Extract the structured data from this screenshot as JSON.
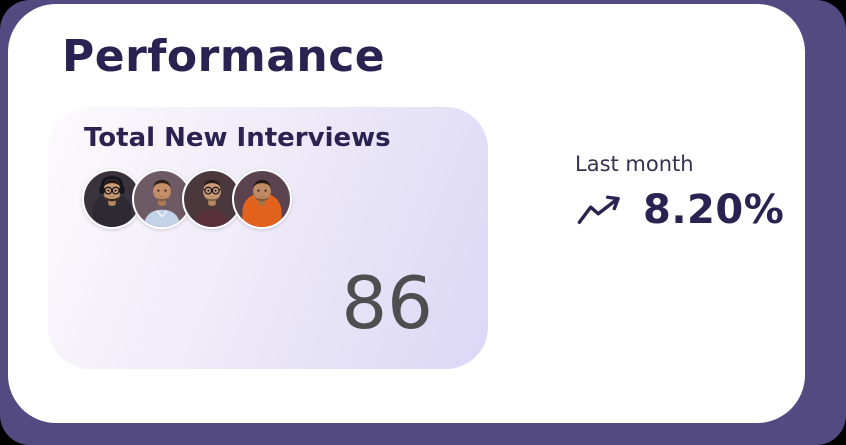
{
  "colors": {
    "frame": "#544a82",
    "card": "#ffffff",
    "ink": "#2a2250",
    "value_gray": "#4e4e50",
    "panel_gradient_start": "#fdfafd",
    "panel_gradient_end": "#dbd7f6"
  },
  "card": {
    "title": "Performance"
  },
  "interviews": {
    "label": "Total New Interviews",
    "value": "86",
    "avatars": [
      {
        "name": "avatar-1",
        "bg": "#3a333d",
        "shirt": "#2d2a33",
        "skin": "#c99c76",
        "skin2": "#b5875f",
        "hair": "#231a16",
        "beard": "full",
        "glasses": true,
        "headphones": true,
        "hood": true,
        "collar": false
      },
      {
        "name": "avatar-2",
        "bg": "#6d5a64",
        "shirt": "#c3d2e8",
        "skin": "#c78f68",
        "skin2": "#b27a52",
        "hair": "#2e211b",
        "beard": "light",
        "glasses": false,
        "headphones": false,
        "hood": false,
        "collar": true
      },
      {
        "name": "avatar-3",
        "bg": "#4a383c",
        "shirt": "#59303a",
        "skin": "#cb9d78",
        "skin2": "#b78862",
        "hair": "#2a1e18",
        "beard": "light",
        "glasses": true,
        "headphones": false,
        "hood": false,
        "collar": false
      },
      {
        "name": "avatar-4",
        "bg": "#5a434e",
        "shirt": "#e2611d",
        "skin": "#c08a62",
        "skin2": "#aa7449",
        "hair": "#241a15",
        "beard": "light",
        "glasses": false,
        "headphones": false,
        "hood": true,
        "collar": false
      }
    ]
  },
  "trend": {
    "label": "Last month",
    "value": "8.20%",
    "icon": "trending-up"
  }
}
